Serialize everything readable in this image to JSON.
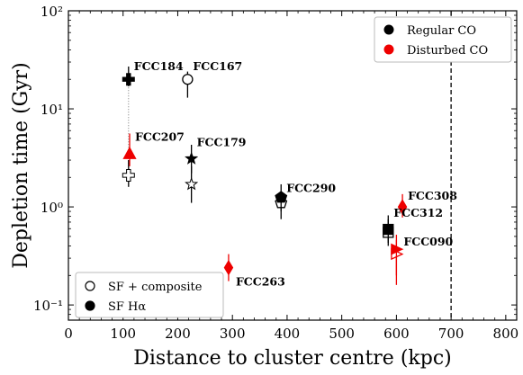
{
  "chart_data": {
    "type": "scatter",
    "xlabel": "Distance to cluster centre (kpc)",
    "ylabel": "Depletion time (Gyr)",
    "xlim": [
      0,
      820
    ],
    "ylim": [
      0.07,
      100
    ],
    "yscale": "log",
    "x_ticks": [
      0,
      100,
      200,
      300,
      400,
      500,
      600,
      700,
      800
    ],
    "x_tick_labels": [
      "0",
      "100",
      "200",
      "300",
      "400",
      "500",
      "600",
      "700",
      "800"
    ],
    "y_ticks": [
      0.1,
      1,
      10,
      100
    ],
    "y_tick_labels": [
      "10⁻¹",
      "10⁰",
      "10¹",
      "10²"
    ],
    "grid": false,
    "vertical_line": {
      "x": 700,
      "style": "dashed",
      "color": "#000000"
    },
    "colors": {
      "regular": "#000000",
      "disturbed": "#ee0000"
    },
    "legend_co": {
      "placement": "top-right",
      "entries": [
        {
          "label": "Regular CO",
          "color": "#000000"
        },
        {
          "label": "Disturbed CO",
          "color": "#ee0000"
        }
      ]
    },
    "legend_sf": {
      "placement": "bottom-left",
      "entries": [
        {
          "label": "SF + composite",
          "fill": "open"
        },
        {
          "label": "SF Hα",
          "fill": "filled"
        }
      ]
    },
    "galaxies": [
      {
        "label": "FCC184",
        "x": 110,
        "marker": "plus",
        "color": "regular",
        "y_ha": 20,
        "y_ha_err": [
          17,
          27
        ],
        "y_comp": 2.1,
        "y_comp_err": [
          1.6,
          3.0
        ],
        "dotted_link": true
      },
      {
        "label": "FCC167",
        "x": 218,
        "marker": "circle",
        "color": "regular",
        "y_ha": null,
        "y_comp": 20,
        "y_comp_err": [
          13,
          24
        ]
      },
      {
        "label": "FCC207",
        "x": 112,
        "marker": "triangle",
        "color": "disturbed",
        "y_ha": 3.5,
        "y_ha_err": [
          2.6,
          5.6
        ],
        "y_comp": null
      },
      {
        "label": "FCC179",
        "x": 225,
        "marker": "star",
        "color": "regular",
        "y_ha": 3.1,
        "y_ha_err": [
          2.2,
          4.3
        ],
        "y_comp": 1.7,
        "y_comp_err": [
          1.1,
          2.6
        ]
      },
      {
        "label": "FCC290",
        "x": 389,
        "marker": "pentagon",
        "color": "regular",
        "y_ha": 1.25,
        "y_ha_err": [
          0.9,
          1.7
        ],
        "y_comp": 1.1,
        "y_comp_err": [
          0.75,
          1.45
        ]
      },
      {
        "label": "FCC263",
        "x": 293,
        "marker": "diamond",
        "color": "disturbed",
        "y_ha": 0.24,
        "y_ha_err": [
          0.175,
          0.33
        ],
        "y_comp": null
      },
      {
        "label": "FCC308",
        "x": 611,
        "marker": "diamond",
        "color": "disturbed",
        "y_ha": 1.0,
        "y_ha_err": [
          0.78,
          1.35
        ],
        "y_comp": null
      },
      {
        "label": "FCC312",
        "x": 585,
        "marker": "square",
        "color": "regular",
        "y_ha": 0.59,
        "y_ha_err": [
          0.43,
          0.82
        ],
        "y_comp": 0.55,
        "y_comp_err": [
          0.4,
          0.75
        ]
      },
      {
        "label": "FCC090",
        "x": 600,
        "marker": "triangle-right",
        "color": "disturbed",
        "y_ha": 0.37,
        "y_ha_err": [
          0.16,
          0.52
        ],
        "y_comp": 0.33,
        "y_comp_err": [
          0.2,
          0.46
        ]
      }
    ]
  }
}
